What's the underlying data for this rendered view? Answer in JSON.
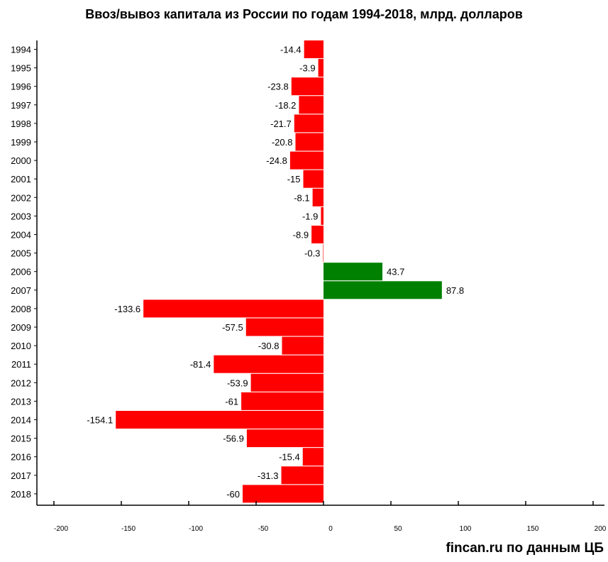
{
  "chart_data": {
    "type": "bar",
    "orientation": "horizontal",
    "title": "Ввоз/вывоз капитала из России по годам 1994-2018, млрд. долларов",
    "source": "fincan.ru по данным ЦБ",
    "xlim": [
      -200,
      200
    ],
    "x_ticks": [
      "-200",
      "-150",
      "-100",
      "-50",
      "0",
      "50",
      "100",
      "150",
      "200"
    ],
    "colors": {
      "negative": "#ff0000",
      "positive": "#008000"
    },
    "categories": [
      "1994",
      "1995",
      "1996",
      "1997",
      "1998",
      "1999",
      "2000",
      "2001",
      "2002",
      "2003",
      "2004",
      "2005",
      "2006",
      "2007",
      "2008",
      "2009",
      "2010",
      "2011",
      "2012",
      "2013",
      "2014",
      "2015",
      "2016",
      "2017",
      "2018"
    ],
    "values": [
      -14.4,
      -3.9,
      -23.8,
      -18.2,
      -21.7,
      -20.8,
      -24.8,
      -15,
      -8.1,
      -1.9,
      -8.9,
      -0.3,
      43.7,
      87.8,
      -133.6,
      -57.5,
      -30.8,
      -81.4,
      -53.9,
      -61,
      -154.1,
      -56.9,
      -15.4,
      -31.3,
      -60
    ],
    "value_labels": [
      "-14.4",
      "-3.9",
      "-23.8",
      "-18.2",
      "-21.7",
      "-20.8",
      "-24.8",
      "-15",
      "-8.1",
      "-1.9",
      "-8.9",
      "-0.3",
      "43.7",
      "87.8",
      "-133.6",
      "-57.5",
      "-30.8",
      "-81.4",
      "-53.9",
      "-61",
      "-154.1",
      "-56.9",
      "-15.4",
      "-31.3",
      "-60"
    ]
  }
}
